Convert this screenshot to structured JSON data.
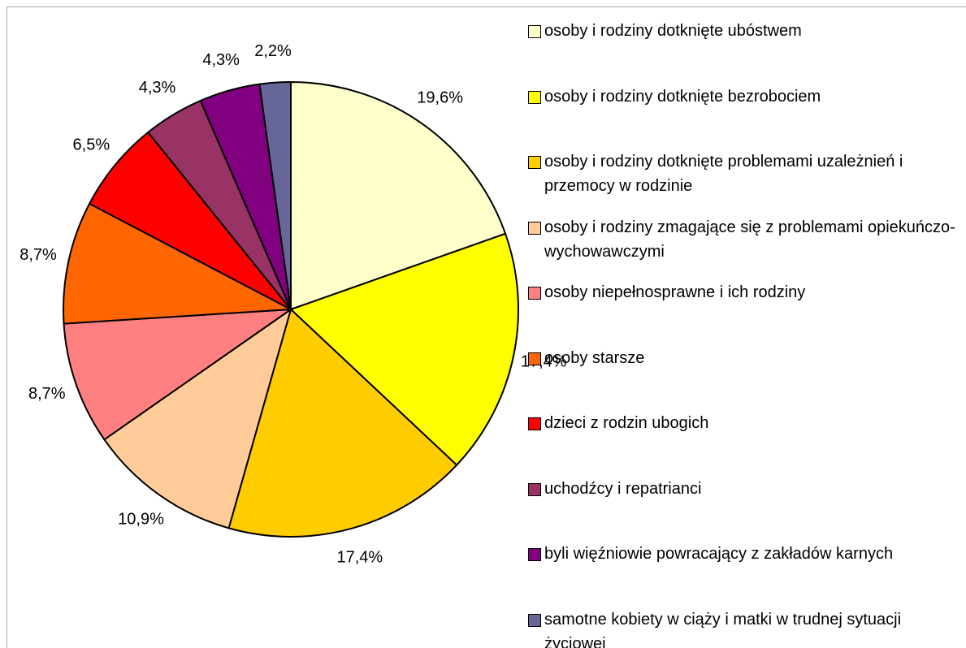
{
  "chart_data": {
    "type": "pie",
    "categories": [
      "osoby i rodziny dotknięte ubóstwem",
      "osoby i rodziny dotknięte bezrobociem",
      "osoby i rodziny dotknięte problemami uzależnień i przemocy w rodzinie",
      "osoby i rodziny zmagające się z problemami opiekuńczo-wychowawczymi",
      "osoby niepełnosprawne i ich rodziny",
      "osoby starsze",
      "dzieci z rodzin ubogich",
      "uchodźcy i repatrianci",
      "byli więźniowie powracający z zakładów karnych",
      "samotne kobiety w ciąży i matki w trudnej sytuacji życiowej"
    ],
    "values": [
      19.6,
      17.4,
      17.4,
      10.9,
      8.7,
      8.7,
      6.5,
      4.3,
      4.3,
      2.2
    ],
    "value_labels": [
      "19,6%",
      "17,4%",
      "17,4%",
      "10,9%",
      "8,7%",
      "8,7%",
      "6,5%",
      "4,3%",
      "4,3%",
      "2,2%"
    ],
    "colors": [
      "#ffffcc",
      "#ffff00",
      "#ffcc00",
      "#ffcc99",
      "#ff8080",
      "#ff6600",
      "#ff0000",
      "#993366",
      "#800080",
      "#666699"
    ],
    "legend": "right"
  }
}
